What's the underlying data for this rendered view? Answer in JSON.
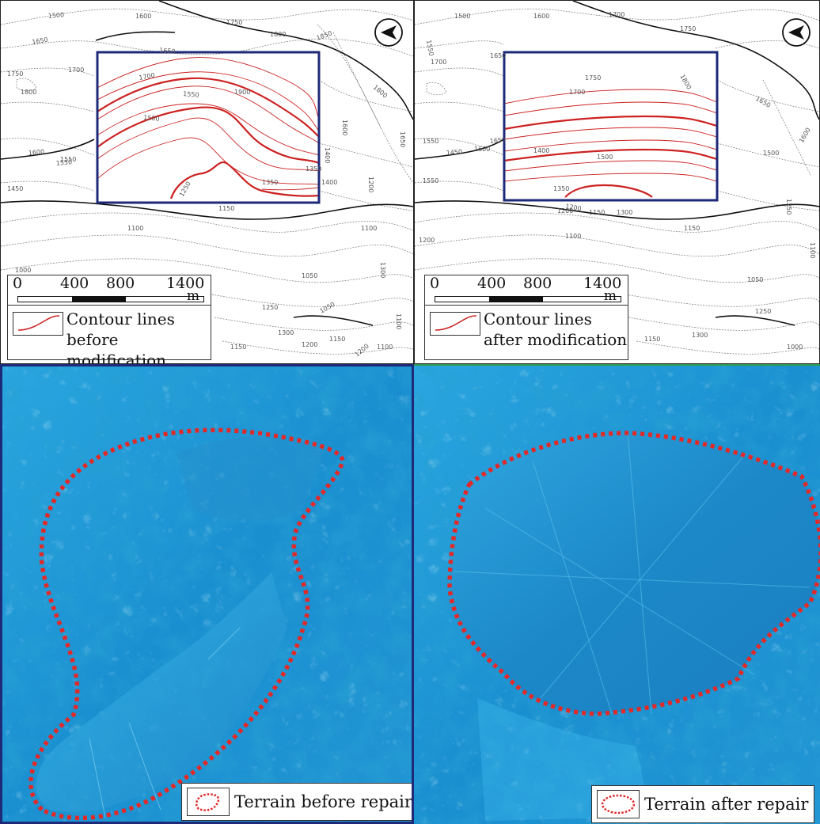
{
  "colors": {
    "contour_black": "#111111",
    "contour_gray": "#777777",
    "contour_red": "#cc2222",
    "frame_navy": "#1e2a78",
    "terrain_blue": "#1a8fd0",
    "terrain_light": "#5cc8f2",
    "outline_dotted": "#e02a2a"
  },
  "icons": {
    "north_arrow": "north-arrow-icon"
  },
  "top_left": {
    "scale_ticks": [
      "0",
      "400",
      "800",
      "1400"
    ],
    "scale_unit": "m",
    "legend_line1": "Contour lines",
    "legend_line2": "before modification",
    "contour_labels": [
      "1500",
      "1600",
      "1750",
      "1800",
      "1850",
      "1650",
      "1750",
      "1700",
      "1800",
      "1700",
      "1900",
      "1800",
      "1600",
      "1550",
      "1450",
      "1650",
      "1550",
      "1500",
      "1400",
      "1350",
      "1600",
      "1650",
      "1550",
      "1350",
      "1250",
      "1400",
      "1200",
      "1150",
      "1100",
      "1050",
      "1300",
      "1250",
      "1150",
      "1200",
      "1100",
      "1000",
      "1050",
      "1100",
      "1150",
      "1250",
      "1300",
      "1200",
      "1100"
    ]
  },
  "top_right": {
    "scale_ticks": [
      "0",
      "400",
      "800",
      "1400"
    ],
    "scale_unit": "m",
    "legend_line1": "Contour lines",
    "legend_line2": "after modification",
    "contour_labels": [
      "1600",
      "1700",
      "1550",
      "1500",
      "1750",
      "1650",
      "1700",
      "1800",
      "1750",
      "1700",
      "1650",
      "1600",
      "1550",
      "1450",
      "1400",
      "1500",
      "1350",
      "1300",
      "1200",
      "1250",
      "1150",
      "1650",
      "1600",
      "1550",
      "1500",
      "1200",
      "1150",
      "1100",
      "1050",
      "1250",
      "1300",
      "1150",
      "1000",
      "1100",
      "1200"
    ]
  },
  "bottom_left": {
    "legend": "Terrain before repair"
  },
  "bottom_right": {
    "legend": "Terrain after repair"
  }
}
